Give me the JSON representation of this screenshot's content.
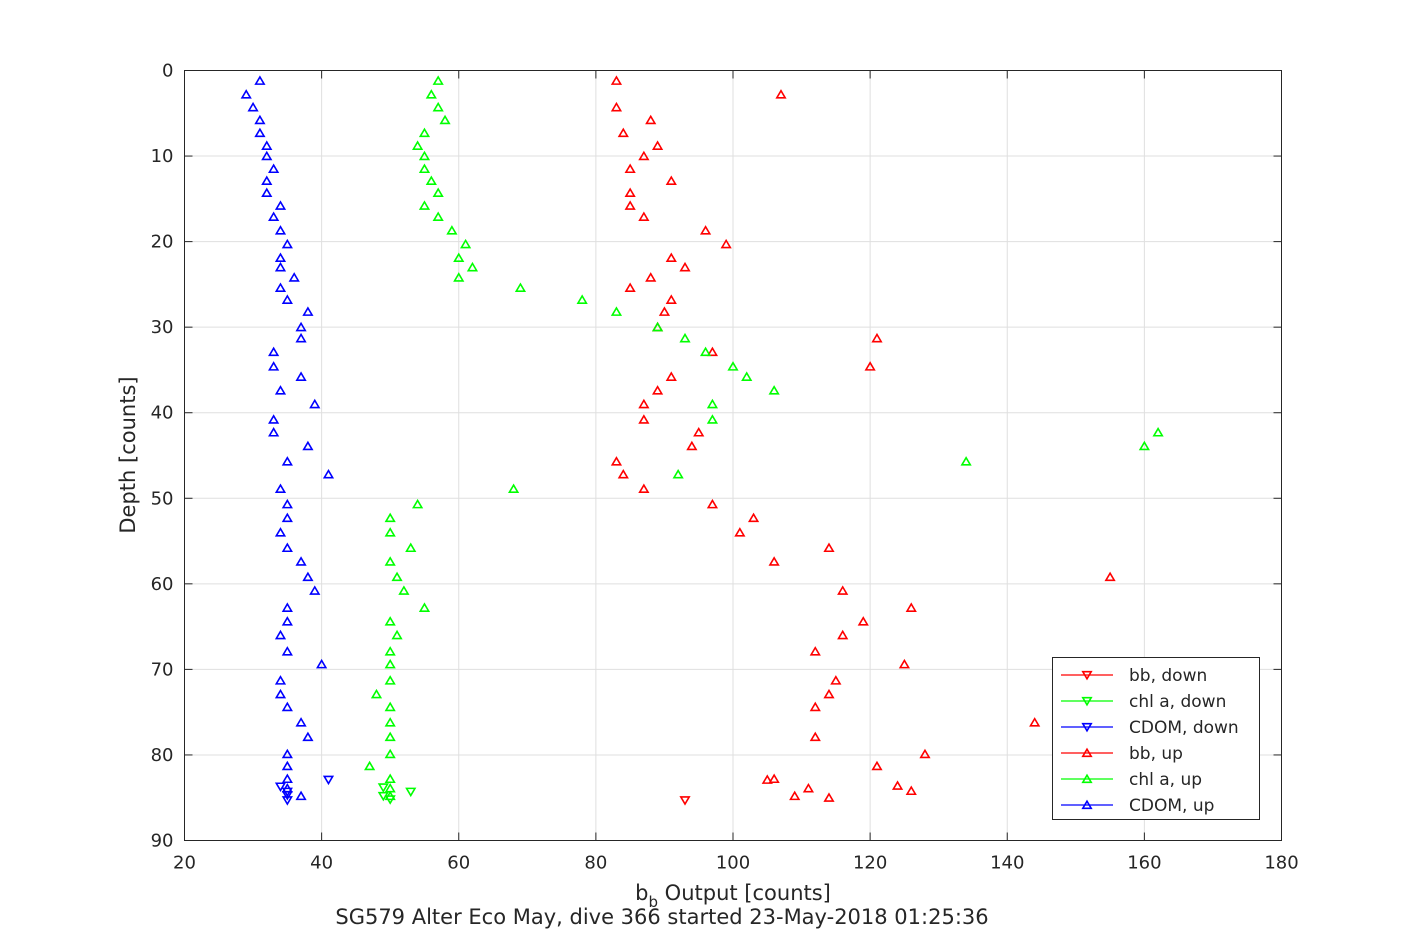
{
  "chart_data": {
    "type": "scatter",
    "xlabel": "b",
    "xlabel_sub": "b",
    "xlabel_rest": " Output [counts]",
    "ylabel": "Depth [counts]",
    "footer": "SG579 Alter Eco May, dive 366 started 23-May-2018 01:25:36",
    "xlim": [
      20,
      180
    ],
    "ylim": [
      0,
      90
    ],
    "y_reversed": true,
    "grid": true,
    "legend_position": "bottom-right",
    "x_ticks": [
      "20",
      "40",
      "60",
      "80",
      "100",
      "120",
      "140",
      "160",
      "180"
    ],
    "y_ticks": [
      "0",
      "10",
      "20",
      "30",
      "40",
      "50",
      "60",
      "70",
      "80",
      "90"
    ],
    "series": [
      {
        "name": "bb, down",
        "color": "#ff0000",
        "marker": "triangle-down",
        "points": [
          [
            93,
            85.3
          ]
        ]
      },
      {
        "name": "chl a, down",
        "color": "#00ff00",
        "marker": "triangle-down",
        "points": [
          [
            49,
            84.8
          ],
          [
            53,
            84.3
          ],
          [
            50,
            85.2
          ],
          [
            49,
            83.8
          ]
        ]
      },
      {
        "name": "CDOM, down",
        "color": "#0000ff",
        "marker": "triangle-down",
        "points": [
          [
            41,
            82.9
          ],
          [
            34,
            83.7
          ],
          [
            35,
            84.7
          ],
          [
            35,
            85.3
          ],
          [
            35,
            84.3
          ]
        ]
      },
      {
        "name": "bb, up",
        "color": "#ff0000",
        "marker": "triangle-up",
        "points": [
          [
            83,
            1.2
          ],
          [
            107,
            2.8
          ],
          [
            83,
            4.3
          ],
          [
            88,
            5.8
          ],
          [
            84,
            7.3
          ],
          [
            89,
            8.8
          ],
          [
            87,
            10.0
          ],
          [
            85,
            11.5
          ],
          [
            91,
            12.9
          ],
          [
            85,
            14.3
          ],
          [
            85,
            15.8
          ],
          [
            87,
            17.1
          ],
          [
            96,
            18.7
          ],
          [
            99,
            20.3
          ],
          [
            91,
            21.9
          ],
          [
            93,
            23.0
          ],
          [
            88,
            24.2
          ],
          [
            85,
            25.4
          ],
          [
            91,
            26.8
          ],
          [
            90,
            28.2
          ],
          [
            89,
            30.0
          ],
          [
            121,
            31.3
          ],
          [
            97,
            32.9
          ],
          [
            120,
            34.6
          ],
          [
            91,
            35.8
          ],
          [
            89,
            37.4
          ],
          [
            87,
            39.0
          ],
          [
            87,
            40.8
          ],
          [
            95,
            42.3
          ],
          [
            94,
            43.9
          ],
          [
            83,
            45.7
          ],
          [
            84,
            47.2
          ],
          [
            87,
            48.9
          ],
          [
            97,
            50.7
          ],
          [
            103,
            52.3
          ],
          [
            101,
            54.0
          ],
          [
            114,
            55.8
          ],
          [
            106,
            57.4
          ],
          [
            155,
            59.2
          ],
          [
            116,
            60.8
          ],
          [
            126,
            62.8
          ],
          [
            119,
            64.4
          ],
          [
            116,
            66.0
          ],
          [
            112,
            67.9
          ],
          [
            125,
            69.4
          ],
          [
            115,
            71.3
          ],
          [
            114,
            72.9
          ],
          [
            112,
            74.4
          ],
          [
            144,
            76.2
          ],
          [
            112,
            77.9
          ],
          [
            128,
            79.9
          ],
          [
            121,
            81.3
          ],
          [
            106,
            82.8
          ],
          [
            105,
            82.9
          ],
          [
            124,
            83.6
          ],
          [
            111,
            83.9
          ],
          [
            126,
            84.2
          ],
          [
            109,
            84.8
          ],
          [
            114,
            85.0
          ]
        ]
      },
      {
        "name": "chl a, up",
        "color": "#00ff00",
        "marker": "triangle-up",
        "points": [
          [
            57,
            1.2
          ],
          [
            56,
            2.8
          ],
          [
            57,
            4.3
          ],
          [
            58,
            5.8
          ],
          [
            55,
            7.3
          ],
          [
            54,
            8.8
          ],
          [
            55,
            10.0
          ],
          [
            55,
            11.5
          ],
          [
            56,
            12.9
          ],
          [
            57,
            14.3
          ],
          [
            55,
            15.8
          ],
          [
            57,
            17.1
          ],
          [
            59,
            18.7
          ],
          [
            61,
            20.3
          ],
          [
            60,
            21.9
          ],
          [
            62,
            23.0
          ],
          [
            60,
            24.2
          ],
          [
            69,
            25.4
          ],
          [
            78,
            26.8
          ],
          [
            83,
            28.2
          ],
          [
            89,
            30.0
          ],
          [
            93,
            31.3
          ],
          [
            96,
            32.9
          ],
          [
            100,
            34.6
          ],
          [
            102,
            35.8
          ],
          [
            106,
            37.4
          ],
          [
            97,
            39.0
          ],
          [
            97,
            40.8
          ],
          [
            162,
            42.3
          ],
          [
            160,
            43.9
          ],
          [
            134,
            45.7
          ],
          [
            92,
            47.2
          ],
          [
            68,
            48.9
          ],
          [
            54,
            50.7
          ],
          [
            50,
            52.3
          ],
          [
            50,
            54.0
          ],
          [
            53,
            55.8
          ],
          [
            50,
            57.4
          ],
          [
            51,
            59.2
          ],
          [
            52,
            60.8
          ],
          [
            55,
            62.8
          ],
          [
            50,
            64.4
          ],
          [
            51,
            66.0
          ],
          [
            50,
            67.9
          ],
          [
            50,
            69.4
          ],
          [
            50,
            71.3
          ],
          [
            48,
            72.9
          ],
          [
            50,
            74.4
          ],
          [
            50,
            76.2
          ],
          [
            50,
            77.9
          ],
          [
            50,
            79.9
          ],
          [
            47,
            81.3
          ],
          [
            50,
            82.8
          ],
          [
            50,
            83.9
          ],
          [
            50,
            84.8
          ]
        ]
      },
      {
        "name": "CDOM, up",
        "color": "#0000ff",
        "marker": "triangle-up",
        "points": [
          [
            31,
            1.2
          ],
          [
            29,
            2.8
          ],
          [
            30,
            4.3
          ],
          [
            31,
            5.8
          ],
          [
            31,
            7.3
          ],
          [
            32,
            8.8
          ],
          [
            32,
            10.0
          ],
          [
            33,
            11.5
          ],
          [
            32,
            12.9
          ],
          [
            32,
            14.3
          ],
          [
            34,
            15.8
          ],
          [
            33,
            17.1
          ],
          [
            34,
            18.7
          ],
          [
            35,
            20.3
          ],
          [
            34,
            21.9
          ],
          [
            34,
            23.0
          ],
          [
            36,
            24.2
          ],
          [
            34,
            25.4
          ],
          [
            35,
            26.8
          ],
          [
            38,
            28.2
          ],
          [
            37,
            30.0
          ],
          [
            37,
            31.3
          ],
          [
            33,
            32.9
          ],
          [
            33,
            34.6
          ],
          [
            37,
            35.8
          ],
          [
            34,
            37.4
          ],
          [
            39,
            39.0
          ],
          [
            33,
            40.8
          ],
          [
            33,
            42.3
          ],
          [
            38,
            43.9
          ],
          [
            35,
            45.7
          ],
          [
            41,
            47.2
          ],
          [
            34,
            48.9
          ],
          [
            35,
            50.7
          ],
          [
            35,
            52.3
          ],
          [
            34,
            54.0
          ],
          [
            35,
            55.8
          ],
          [
            37,
            57.4
          ],
          [
            38,
            59.2
          ],
          [
            39,
            60.8
          ],
          [
            35,
            62.8
          ],
          [
            35,
            64.4
          ],
          [
            34,
            66.0
          ],
          [
            35,
            67.9
          ],
          [
            40,
            69.4
          ],
          [
            34,
            71.3
          ],
          [
            34,
            72.9
          ],
          [
            35,
            74.4
          ],
          [
            37,
            76.2
          ],
          [
            38,
            77.9
          ],
          [
            35,
            79.9
          ],
          [
            35,
            81.3
          ],
          [
            35,
            82.8
          ],
          [
            35,
            83.9
          ],
          [
            37,
            84.8
          ]
        ]
      }
    ]
  }
}
